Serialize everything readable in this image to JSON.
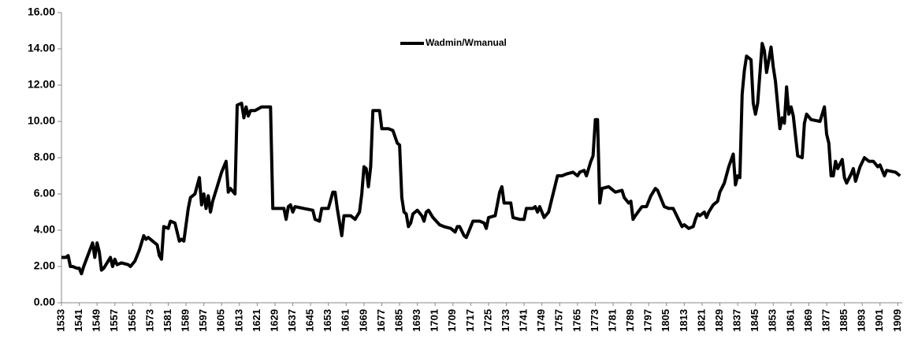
{
  "chart_data": {
    "type": "line",
    "series": [
      {
        "name": "Wadmin/Wmanual",
        "color": "#000000",
        "x": [
          1533,
          1535,
          1536,
          1537,
          1538,
          1540,
          1541,
          1542,
          1543,
          1547,
          1548,
          1549,
          1550,
          1551,
          1552,
          1554,
          1555,
          1556,
          1557,
          1558,
          1560,
          1563,
          1564,
          1566,
          1568,
          1570,
          1571,
          1572,
          1574,
          1576,
          1577,
          1578,
          1579,
          1581,
          1582,
          1584,
          1586,
          1587,
          1588,
          1590,
          1591,
          1593,
          1595,
          1596,
          1597,
          1598,
          1599,
          1600,
          1601,
          1603,
          1605,
          1607,
          1608,
          1609,
          1611,
          1612,
          1614,
          1615,
          1616,
          1617,
          1618,
          1620,
          1623,
          1627,
          1628,
          1630,
          1633,
          1634,
          1635,
          1636,
          1637,
          1638,
          1642,
          1646,
          1647,
          1649,
          1650,
          1653,
          1655,
          1656,
          1657,
          1659,
          1660,
          1663,
          1665,
          1667,
          1668,
          1669,
          1670,
          1671,
          1672,
          1673,
          1676,
          1677,
          1680,
          1682,
          1684,
          1685,
          1686,
          1687,
          1688,
          1689,
          1690,
          1691,
          1693,
          1695,
          1696,
          1697,
          1698,
          1700,
          1703,
          1705,
          1708,
          1710,
          1711,
          1712,
          1714,
          1715,
          1716,
          1718,
          1721,
          1723,
          1724,
          1725,
          1728,
          1730,
          1731,
          1732,
          1735,
          1736,
          1739,
          1741,
          1742,
          1745,
          1746,
          1747,
          1748,
          1750,
          1752,
          1756,
          1758,
          1760,
          1763,
          1765,
          1766,
          1768,
          1769,
          1770,
          1771,
          1772,
          1773,
          1774,
          1775,
          1776,
          1779,
          1780,
          1782,
          1785,
          1786,
          1788,
          1789,
          1790,
          1791,
          1794,
          1796,
          1798,
          1800,
          1801,
          1802,
          1804,
          1806,
          1808,
          1810,
          1812,
          1813,
          1815,
          1817,
          1818,
          1819,
          1820,
          1822,
          1823,
          1824,
          1826,
          1828,
          1829,
          1831,
          1833,
          1835,
          1836,
          1837,
          1838,
          1839,
          1840,
          1841,
          1843,
          1844,
          1845,
          1846,
          1848,
          1849,
          1850,
          1852,
          1853,
          1854,
          1856,
          1857,
          1858,
          1859,
          1860,
          1861,
          1862,
          1864,
          1866,
          1867,
          1868,
          1870,
          1874,
          1876,
          1877,
          1878,
          1879,
          1880,
          1881,
          1882,
          1884,
          1885,
          1886,
          1888,
          1889,
          1890,
          1892,
          1894,
          1896,
          1898,
          1900,
          1901,
          1903,
          1904,
          1908,
          1910
        ],
        "values": [
          2.5,
          2.5,
          2.6,
          2.0,
          2.0,
          1.9,
          1.9,
          1.6,
          2.0,
          3.3,
          2.5,
          3.3,
          2.8,
          1.8,
          1.9,
          2.3,
          2.5,
          2.0,
          2.4,
          2.1,
          2.2,
          2.1,
          2.0,
          2.3,
          2.9,
          3.7,
          3.5,
          3.6,
          3.4,
          3.2,
          2.6,
          2.4,
          4.2,
          4.1,
          4.5,
          4.4,
          3.4,
          3.5,
          3.4,
          5.2,
          5.8,
          6.0,
          6.9,
          5.4,
          6.0,
          5.2,
          5.9,
          5.0,
          5.6,
          6.4,
          7.2,
          7.8,
          6.1,
          6.3,
          6.0,
          10.9,
          11.0,
          10.2,
          10.8,
          10.3,
          10.6,
          10.6,
          10.8,
          10.8,
          5.2,
          5.2,
          5.2,
          4.6,
          5.3,
          5.4,
          5.0,
          5.3,
          5.2,
          5.1,
          4.6,
          4.5,
          5.2,
          5.2,
          6.1,
          6.1,
          5.2,
          3.7,
          4.8,
          4.8,
          4.6,
          5.0,
          6.0,
          7.5,
          7.4,
          6.4,
          7.5,
          10.6,
          10.6,
          9.6,
          9.6,
          9.5,
          8.8,
          8.7,
          5.8,
          5.0,
          4.9,
          4.2,
          4.4,
          4.9,
          5.1,
          4.8,
          4.5,
          5.0,
          5.1,
          4.7,
          4.3,
          4.2,
          4.1,
          3.9,
          4.2,
          4.2,
          3.7,
          3.6,
          3.9,
          4.5,
          4.5,
          4.4,
          4.1,
          4.7,
          4.8,
          6.1,
          6.4,
          5.5,
          5.5,
          4.7,
          4.6,
          4.6,
          5.2,
          5.2,
          5.3,
          5.0,
          5.3,
          4.7,
          5.0,
          7.0,
          7.0,
          7.1,
          7.2,
          7.0,
          7.2,
          7.3,
          7.0,
          7.4,
          7.8,
          8.1,
          10.1,
          10.1,
          5.5,
          6.3,
          6.4,
          6.3,
          6.1,
          6.2,
          5.8,
          5.5,
          5.6,
          4.6,
          4.8,
          5.3,
          5.3,
          5.9,
          6.3,
          6.2,
          5.9,
          5.3,
          5.2,
          5.2,
          4.7,
          4.2,
          4.3,
          4.1,
          4.2,
          4.6,
          4.9,
          4.8,
          5.0,
          4.7,
          5.0,
          5.4,
          5.6,
          6.1,
          6.6,
          7.5,
          8.2,
          6.5,
          7.0,
          6.9,
          11.5,
          12.8,
          13.6,
          13.4,
          11.0,
          10.4,
          11.0,
          14.3,
          13.9,
          12.7,
          14.1,
          13.0,
          12.2,
          9.6,
          10.2,
          9.9,
          11.9,
          10.4,
          10.8,
          10.3,
          8.1,
          8.0,
          9.9,
          10.4,
          10.1,
          10.0,
          10.8,
          9.3,
          8.8,
          7.0,
          7.0,
          7.8,
          7.4,
          7.9,
          6.9,
          6.6,
          7.1,
          7.4,
          6.7,
          7.5,
          8.0,
          7.8,
          7.8,
          7.5,
          7.6,
          7.0,
          7.3,
          7.2,
          7.0
        ]
      }
    ],
    "xlim": [
      1533,
      1911
    ],
    "xticks": [
      1533,
      1541,
      1549,
      1557,
      1565,
      1573,
      1581,
      1589,
      1597,
      1605,
      1613,
      1621,
      1629,
      1637,
      1645,
      1653,
      1661,
      1669,
      1677,
      1685,
      1693,
      1701,
      1709,
      1717,
      1725,
      1733,
      1741,
      1749,
      1757,
      1765,
      1773,
      1781,
      1789,
      1797,
      1805,
      1813,
      1821,
      1829,
      1837,
      1845,
      1853,
      1861,
      1869,
      1877,
      1885,
      1893,
      1901,
      1909
    ],
    "ylim": [
      0,
      16
    ],
    "yticks": [
      {
        "value": 0,
        "label": "0.00"
      },
      {
        "value": 2,
        "label": "2.00"
      },
      {
        "value": 4,
        "label": "4.00"
      },
      {
        "value": 6,
        "label": "6.00"
      },
      {
        "value": 8,
        "label": "8.00"
      },
      {
        "value": 10,
        "label": "10.00"
      },
      {
        "value": 12,
        "label": "12.00"
      },
      {
        "value": 14,
        "label": "14.00"
      },
      {
        "value": 16,
        "label": "16.00"
      }
    ],
    "grid": false,
    "legend": "top"
  }
}
